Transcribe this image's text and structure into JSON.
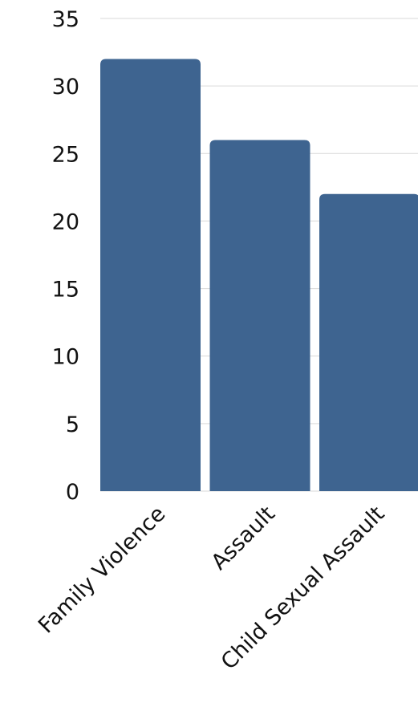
{
  "chart_data": {
    "type": "bar",
    "categories": [
      "Family Violence",
      "Assault",
      "Child Sexual Assault"
    ],
    "values": [
      32,
      26,
      22
    ],
    "ylim": [
      0,
      35
    ],
    "yticks": [
      0,
      5,
      10,
      15,
      20,
      25,
      30,
      35
    ],
    "grid": true,
    "legend": "none",
    "bar_color": "#3e6490",
    "grid_color": "#d9d9d9"
  }
}
